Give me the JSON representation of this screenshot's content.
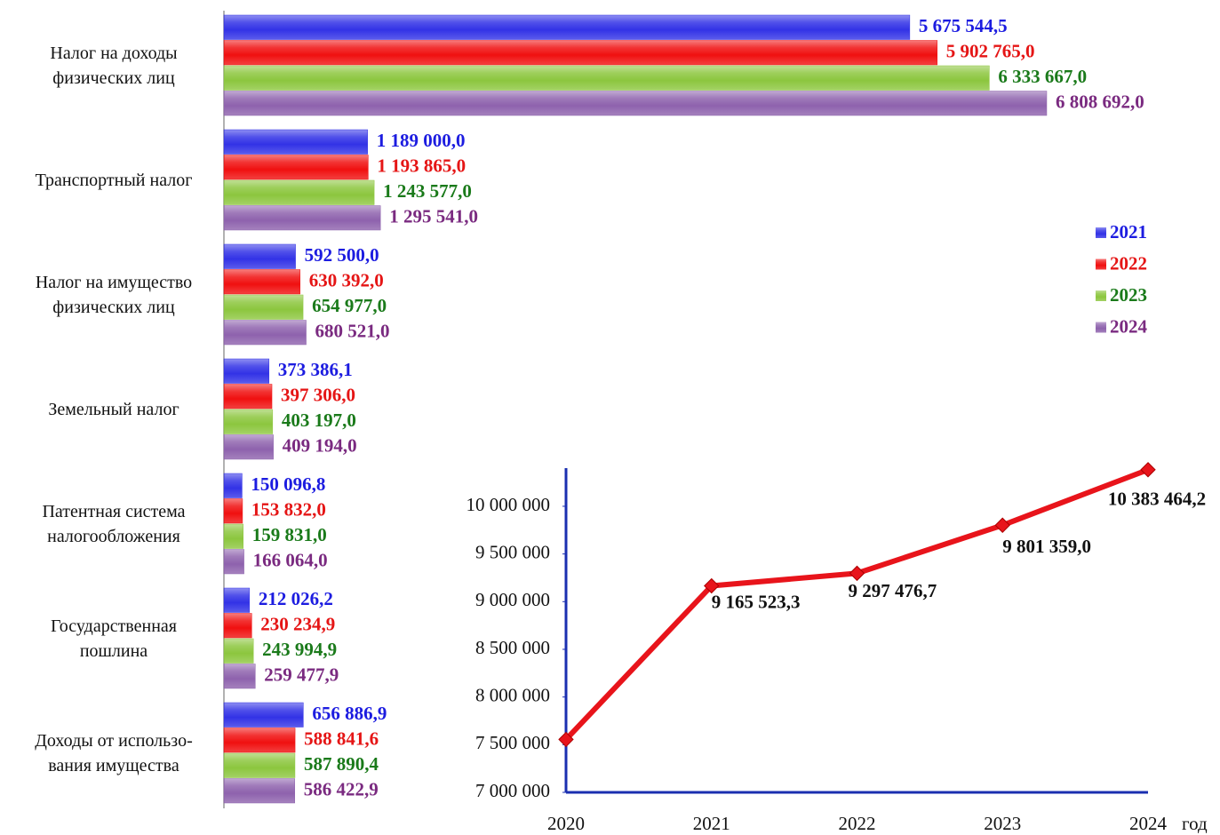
{
  "chart_data": [
    {
      "type": "hbar",
      "categories": [
        "Налог на доходы\nфизических лиц",
        "Транспортный налог",
        "Налог на имущество\nфизических лиц",
        "Земельный налог",
        "Патентная система\nналогообложения",
        "Государственная\nпошлина",
        "Доходы от использо-\nвания имущества"
      ],
      "series": [
        {
          "name": "2021",
          "color": "#3232e6",
          "label_color": "#1c1ce0",
          "values": [
            5675544.5,
            1189000,
            592500,
            373386.1,
            150096.8,
            212026.2,
            656886.9
          ],
          "value_labels": [
            "5 675 544,5",
            "1 189 000,0",
            "592 500,0",
            "373 386,1",
            "150 096,8",
            "212 026,2",
            "656 886,9"
          ]
        },
        {
          "name": "2022",
          "color": "#f01010",
          "label_color": "#e51515",
          "values": [
            5902765,
            1193865,
            630392,
            397306,
            153832,
            230234.9,
            588841.6
          ],
          "value_labels": [
            "5 902 765,0",
            "1 193 865,0",
            "630 392,0",
            "397 306,0",
            "153 832,0",
            "230 234,9",
            "588 841,6"
          ]
        },
        {
          "name": "2023",
          "color": "#8cc63e",
          "label_color": "#1a7a1a",
          "values": [
            6333667,
            1243577,
            654977,
            403197,
            159831,
            243994.9,
            587890.4
          ],
          "value_labels": [
            "6 333 667,0",
            "1 243 577,0",
            "654 977,0",
            "403 197,0",
            "159 831,0",
            "243 994,9",
            "587 890,4"
          ]
        },
        {
          "name": "2024",
          "color": "#8e62ad",
          "label_color": "#7a2a80",
          "values": [
            6808692,
            1295541,
            680521,
            409194,
            166064,
            259477.9,
            586422.9
          ],
          "value_labels": [
            "6 808 692,0",
            "1 295 541,0",
            "680 521,0",
            "409 194,0",
            "166 064,0",
            "259 477,9",
            "586 422,9"
          ]
        }
      ],
      "xlim": [
        0,
        8000000
      ],
      "legend": "right"
    },
    {
      "type": "line",
      "categories": [
        "2020",
        "2021",
        "2022",
        "2023",
        "2024"
      ],
      "xlabel": "год",
      "color": "#e8141b",
      "values": [
        7555000,
        9165523.3,
        9297476.7,
        9801359,
        10383464.2
      ],
      "value_labels": [
        null,
        "9 165 523,3",
        "9 297 476,7",
        "9 801 359,0",
        "10 383 464,2"
      ],
      "ylim": [
        7000000,
        10400000
      ],
      "yticks": [
        {
          "value": 7000000,
          "label": "7 000 000"
        },
        {
          "value": 7500000,
          "label": "7 500 000"
        },
        {
          "value": 8000000,
          "label": "8 000 000"
        },
        {
          "value": 8500000,
          "label": "8 500 000"
        },
        {
          "value": 9000000,
          "label": "9 000 000"
        },
        {
          "value": 9500000,
          "label": "9 500 000"
        },
        {
          "value": 10000000,
          "label": "10 000 000"
        }
      ]
    }
  ]
}
